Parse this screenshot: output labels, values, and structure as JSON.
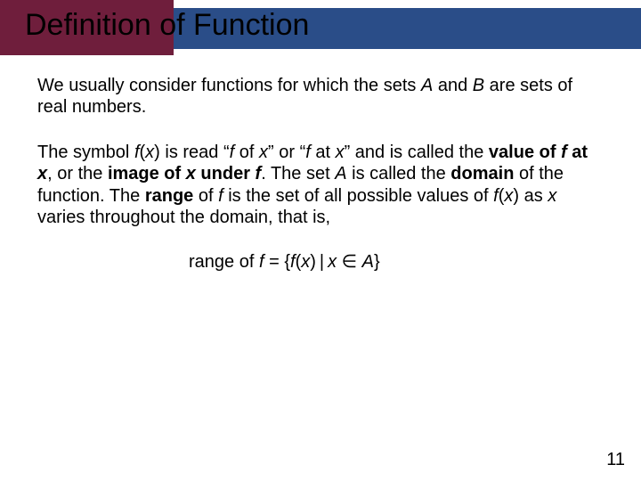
{
  "colors": {
    "blue": "#2a4d88",
    "maroon": "#6f1e3c",
    "text": "#000000",
    "background": "#ffffff"
  },
  "title": "Definition of Function",
  "p1": {
    "t1": "We usually consider functions for which the sets ",
    "A": "A",
    "t2": " and ",
    "B": "B",
    "t3": " are sets of real numbers."
  },
  "p2": {
    "t1": "The symbol ",
    "fx1": "f",
    "fx2": "(",
    "fx3": "x",
    "fx4": ")",
    "t2": " is read “",
    "f_of_x_f": "f",
    "t3": " of ",
    "f_of_x_x": "x",
    "t4": "” or “",
    "f_at_x_f": "f",
    "t5": " at ",
    "f_at_x_x": "x",
    "t6": "” and is called the ",
    "val1": "value of ",
    "val_f": "f ",
    "val2": "at ",
    "val_x": "x",
    "t7": ", or the ",
    "img1": "image of ",
    "img_x": "x",
    "img2": " under ",
    "img_f": "f",
    "t8": ". The set ",
    "A": "A",
    "t9": " is called the ",
    "domain": "domain",
    "t10": " of the function. The ",
    "range": "range",
    "t11": " of ",
    "f4": "f",
    "t12": " is the set of all possible values of ",
    "fx5": "f",
    "fx6": "(",
    "fx7": "x",
    "fx8": ")",
    "t13": " as ",
    "x2": "x",
    "t14": " varies throughout the domain, that is,"
  },
  "rangeLine": {
    "t1": "range of ",
    "f": "f ",
    "eq": "= {",
    "f2": "f",
    "lp": "(",
    "x": "x",
    "rp": ")",
    "bar": " | ",
    "x2": "x ",
    "in": "∈",
    "sp": " ",
    "A": "A",
    "cb": "}"
  },
  "pageNumber": "11"
}
